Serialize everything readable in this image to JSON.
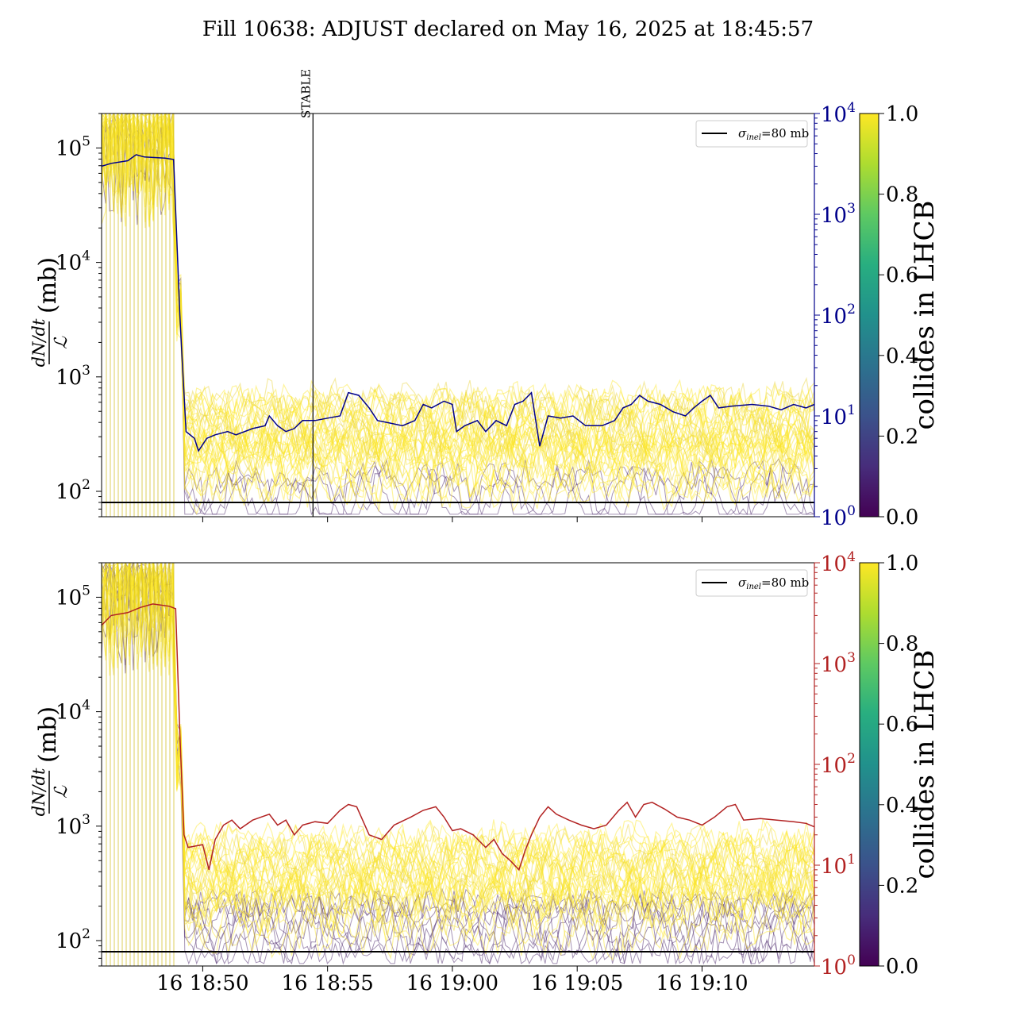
{
  "title": "Fill 10638: ADJUST declared on May 16, 2025 at 18:45:57",
  "colors": {
    "yellow": "#fde725",
    "purple": "#440154",
    "navy": "#00008b",
    "firebrick": "#b22222",
    "black": "#000000"
  },
  "chart_data": [
    {
      "type": "line",
      "panel": "top",
      "ylabel_num": "dN/dt",
      "ylabel_den": "ℒ",
      "ylabel_unit": "(mb)",
      "y_scale": "log",
      "ylim": [
        60,
        200000
      ],
      "y_ticks": [
        {
          "v": 100,
          "label": "10",
          "exp": "2"
        },
        {
          "v": 1000,
          "label": "10",
          "exp": "3"
        },
        {
          "v": 10000,
          "label": "10",
          "exp": "4"
        },
        {
          "v": 100000,
          "label": "10",
          "exp": "5"
        }
      ],
      "xlim": [
        "18:45:57",
        "19:14:30"
      ],
      "x_ticks": [
        "16 18:50",
        "16 18:55",
        "16 19:00",
        "16 19:05",
        "16 19:10"
      ],
      "x_tick_labels_shown": false,
      "right_axis": {
        "scale": "log",
        "ylim": [
          1,
          10000
        ],
        "ticks": [
          {
            "v": 1,
            "label": "10",
            "exp": "0"
          },
          {
            "v": 10,
            "label": "10",
            "exp": "1"
          },
          {
            "v": 100,
            "label": "10",
            "exp": "2"
          },
          {
            "v": 1000,
            "label": "10",
            "exp": "3"
          },
          {
            "v": 10000,
            "label": "10",
            "exp": "4"
          }
        ],
        "color": "#00008b"
      },
      "vertical_marker": {
        "time": "18:54:25",
        "label": "STABLE"
      },
      "hline": {
        "value": 80,
        "legend": "σ",
        "legend_sub": "inel",
        "legend_rest": "=80 mb"
      },
      "bunch_traces": {
        "colormap": "viridis",
        "description": "per-bunch traces colored by collides in LHCB"
      },
      "right_series": {
        "color": "#00008b",
        "points": [
          [
            "18:45:57",
            3000
          ],
          [
            "18:46:20",
            3200
          ],
          [
            "18:47:00",
            3400
          ],
          [
            "18:47:20",
            3900
          ],
          [
            "18:47:40",
            3700
          ],
          [
            "18:48:30",
            3600
          ],
          [
            "18:48:50",
            3500
          ],
          [
            "18:49:05",
            100
          ],
          [
            "18:49:10",
            40
          ],
          [
            "18:49:20",
            7
          ],
          [
            "18:49:40",
            6
          ],
          [
            "18:49:50",
            4.5
          ],
          [
            "18:50:10",
            6
          ],
          [
            "18:50:30",
            6.5
          ],
          [
            "18:51:00",
            7
          ],
          [
            "18:51:20",
            6.5
          ],
          [
            "18:52:00",
            7.5
          ],
          [
            "18:52:30",
            8
          ],
          [
            "18:52:40",
            10
          ],
          [
            "18:53:00",
            8
          ],
          [
            "18:53:20",
            7
          ],
          [
            "18:53:40",
            7.5
          ],
          [
            "18:54:00",
            9
          ],
          [
            "18:54:30",
            9
          ],
          [
            "18:55:00",
            9.5
          ],
          [
            "18:55:30",
            10
          ],
          [
            "18:55:50",
            17
          ],
          [
            "18:56:15",
            16
          ],
          [
            "18:56:40",
            12
          ],
          [
            "18:57:00",
            9
          ],
          [
            "18:57:30",
            8.5
          ],
          [
            "18:58:00",
            8
          ],
          [
            "18:58:30",
            9
          ],
          [
            "18:58:50",
            13
          ],
          [
            "18:59:10",
            12
          ],
          [
            "18:59:40",
            14
          ],
          [
            "19:00:00",
            13
          ],
          [
            "19:00:10",
            7
          ],
          [
            "19:00:30",
            8
          ],
          [
            "19:01:00",
            9
          ],
          [
            "19:01:20",
            7
          ],
          [
            "19:01:45",
            9
          ],
          [
            "19:02:10",
            8
          ],
          [
            "19:02:30",
            13
          ],
          [
            "19:02:50",
            14
          ],
          [
            "19:03:10",
            17
          ],
          [
            "19:03:30",
            5
          ],
          [
            "19:03:50",
            10
          ],
          [
            "19:04:20",
            9.5
          ],
          [
            "19:04:50",
            10
          ],
          [
            "19:05:20",
            8
          ],
          [
            "19:06:00",
            8
          ],
          [
            "19:06:30",
            9
          ],
          [
            "19:06:50",
            12
          ],
          [
            "19:07:10",
            13
          ],
          [
            "19:07:30",
            16
          ],
          [
            "19:07:50",
            14
          ],
          [
            "19:08:20",
            13
          ],
          [
            "19:08:50",
            11
          ],
          [
            "19:09:20",
            10
          ],
          [
            "19:09:40",
            12
          ],
          [
            "19:10:00",
            14
          ],
          [
            "19:10:20",
            16
          ],
          [
            "19:10:40",
            12
          ],
          [
            "19:11:10",
            12.5
          ],
          [
            "19:12:00",
            13
          ],
          [
            "19:12:40",
            12.5
          ],
          [
            "19:13:10",
            11.5
          ],
          [
            "19:13:40",
            13
          ],
          [
            "19:14:10",
            12
          ],
          [
            "19:14:30",
            13
          ]
        ]
      }
    },
    {
      "type": "line",
      "panel": "bottom",
      "ylabel_num": "dN/dt",
      "ylabel_den": "ℒ",
      "ylabel_unit": "(mb)",
      "y_scale": "log",
      "ylim": [
        60,
        200000
      ],
      "y_ticks": [
        {
          "v": 100,
          "label": "10",
          "exp": "2"
        },
        {
          "v": 1000,
          "label": "10",
          "exp": "3"
        },
        {
          "v": 10000,
          "label": "10",
          "exp": "4"
        },
        {
          "v": 100000,
          "label": "10",
          "exp": "5"
        }
      ],
      "xlim": [
        "18:45:57",
        "19:14:30"
      ],
      "x_ticks": [
        "16 18:50",
        "16 18:55",
        "16 19:00",
        "16 19:05",
        "16 19:10"
      ],
      "x_tick_labels_shown": true,
      "right_axis": {
        "scale": "log",
        "ylim": [
          1,
          10000
        ],
        "ticks": [
          {
            "v": 1,
            "label": "10",
            "exp": "0"
          },
          {
            "v": 10,
            "label": "10",
            "exp": "1"
          },
          {
            "v": 100,
            "label": "10",
            "exp": "2"
          },
          {
            "v": 1000,
            "label": "10",
            "exp": "3"
          },
          {
            "v": 10000,
            "label": "10",
            "exp": "4"
          }
        ],
        "color": "#b22222"
      },
      "hline": {
        "value": 80,
        "legend": "σ",
        "legend_sub": "inel",
        "legend_rest": "=80 mb"
      },
      "bunch_traces": {
        "colormap": "viridis",
        "description": "per-bunch traces colored by collides in LHCB"
      },
      "right_series": {
        "color": "#b22222",
        "points": [
          [
            "18:45:57",
            2400
          ],
          [
            "18:46:20",
            3000
          ],
          [
            "18:47:00",
            3200
          ],
          [
            "18:47:30",
            3600
          ],
          [
            "18:48:00",
            3900
          ],
          [
            "18:48:40",
            3700
          ],
          [
            "18:48:55",
            3500
          ],
          [
            "18:49:05",
            200
          ],
          [
            "18:49:15",
            20
          ],
          [
            "18:49:25",
            15
          ],
          [
            "18:50:00",
            16
          ],
          [
            "18:50:15",
            9
          ],
          [
            "18:50:30",
            18
          ],
          [
            "18:50:50",
            25
          ],
          [
            "18:51:10",
            28
          ],
          [
            "18:51:30",
            23
          ],
          [
            "18:52:00",
            28
          ],
          [
            "18:52:20",
            30
          ],
          [
            "18:52:40",
            32
          ],
          [
            "18:53:00",
            25
          ],
          [
            "18:53:20",
            28
          ],
          [
            "18:53:40",
            20
          ],
          [
            "18:54:00",
            25
          ],
          [
            "18:54:30",
            27
          ],
          [
            "18:55:00",
            26
          ],
          [
            "18:55:30",
            35
          ],
          [
            "18:55:50",
            40
          ],
          [
            "18:56:10",
            38
          ],
          [
            "18:56:40",
            20
          ],
          [
            "18:57:10",
            18
          ],
          [
            "18:57:40",
            25
          ],
          [
            "18:58:20",
            30
          ],
          [
            "18:58:50",
            35
          ],
          [
            "18:59:20",
            38
          ],
          [
            "18:59:40",
            30
          ],
          [
            "19:00:00",
            22
          ],
          [
            "19:00:20",
            23
          ],
          [
            "19:00:50",
            20
          ],
          [
            "19:01:20",
            15
          ],
          [
            "19:01:40",
            18
          ],
          [
            "19:02:00",
            13
          ],
          [
            "19:02:20",
            11
          ],
          [
            "19:02:40",
            9
          ],
          [
            "19:02:55",
            14
          ],
          [
            "19:03:10",
            20
          ],
          [
            "19:03:30",
            30
          ],
          [
            "19:03:50",
            38
          ],
          [
            "19:04:10",
            32
          ],
          [
            "19:04:40",
            28
          ],
          [
            "19:05:10",
            25
          ],
          [
            "19:05:40",
            23
          ],
          [
            "19:06:10",
            25
          ],
          [
            "19:06:40",
            35
          ],
          [
            "19:07:00",
            42
          ],
          [
            "19:07:20",
            30
          ],
          [
            "19:07:40",
            40
          ],
          [
            "19:08:00",
            42
          ],
          [
            "19:08:30",
            36
          ],
          [
            "19:09:00",
            30
          ],
          [
            "19:09:30",
            28
          ],
          [
            "19:10:00",
            25
          ],
          [
            "19:10:30",
            30
          ],
          [
            "19:11:00",
            38
          ],
          [
            "19:11:20",
            40
          ],
          [
            "19:11:40",
            28
          ],
          [
            "19:12:20",
            29
          ],
          [
            "19:13:00",
            28
          ],
          [
            "19:13:40",
            27
          ],
          [
            "19:14:10",
            26
          ],
          [
            "19:14:30",
            24
          ]
        ]
      }
    }
  ],
  "colorbar": {
    "label": "collides in LHCB",
    "ticks": [
      "0.0",
      "0.2",
      "0.4",
      "0.6",
      "0.8",
      "1.0"
    ],
    "colormap": "viridis"
  }
}
